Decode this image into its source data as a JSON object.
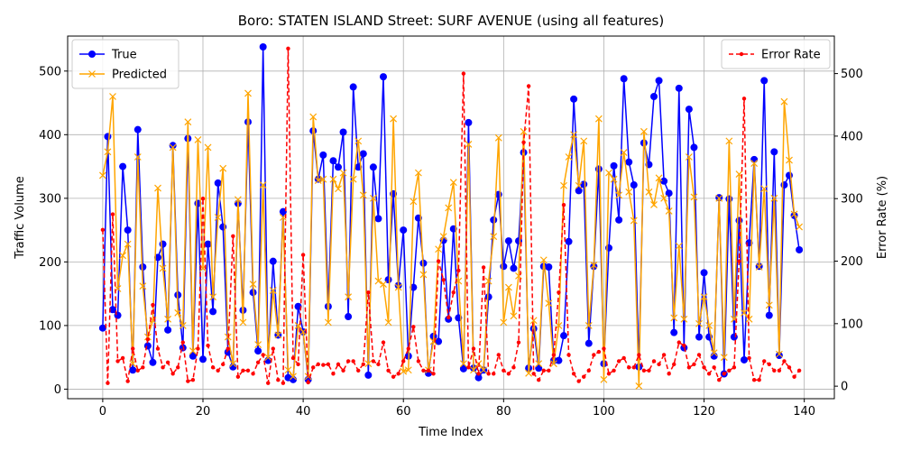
{
  "chart_data": {
    "type": "line",
    "title": "Boro: STATEN ISLAND Street: SURF AVENUE (using all features)",
    "xlabel": "Time Index",
    "ylabel_left": "Traffic Volume",
    "ylabel_right": "Error Rate (%)",
    "xlim": [
      -7,
      146
    ],
    "ylim_left": [
      -15,
      555
    ],
    "ylim_right": [
      -20,
      560
    ],
    "xticks": [
      0,
      20,
      40,
      60,
      80,
      100,
      120,
      140
    ],
    "yticks_left": [
      0,
      100,
      200,
      300,
      400,
      500
    ],
    "yticks_right": [
      0,
      100,
      200,
      300,
      400,
      500
    ],
    "grid": true,
    "x": [
      0,
      1,
      2,
      3,
      4,
      5,
      6,
      7,
      8,
      9,
      10,
      11,
      12,
      13,
      14,
      15,
      16,
      17,
      18,
      19,
      20,
      21,
      22,
      23,
      24,
      25,
      26,
      27,
      28,
      29,
      30,
      31,
      32,
      33,
      34,
      35,
      36,
      37,
      38,
      39,
      40,
      41,
      42,
      43,
      44,
      45,
      46,
      47,
      48,
      49,
      50,
      51,
      52,
      53,
      54,
      55,
      56,
      57,
      58,
      59,
      60,
      61,
      62,
      63,
      64,
      65,
      66,
      67,
      68,
      69,
      70,
      71,
      72,
      73,
      74,
      75,
      76,
      77,
      78,
      79,
      80,
      81,
      82,
      83,
      84,
      85,
      86,
      87,
      88,
      89,
      90,
      91,
      92,
      93,
      94,
      95,
      96,
      97,
      98,
      99,
      100,
      101,
      102,
      103,
      104,
      105,
      106,
      107,
      108,
      109,
      110,
      111,
      112,
      113,
      114,
      115,
      116,
      117,
      118,
      119,
      120,
      121,
      122,
      123,
      124,
      125,
      126,
      127,
      128,
      129,
      130,
      131,
      132,
      133,
      134,
      135,
      136,
      137,
      138,
      139
    ],
    "series": [
      {
        "name": "True",
        "axis": "left",
        "color": "#0000ff",
        "marker": "o",
        "values": [
          96,
          397,
          125,
          116,
          350,
          250,
          30,
          408,
          192,
          68,
          42,
          207,
          228,
          93,
          383,
          148,
          65,
          394,
          52,
          292,
          47,
          228,
          122,
          324,
          255,
          58,
          35,
          292,
          124,
          420,
          152,
          60,
          538,
          45,
          201,
          85,
          279,
          18,
          15,
          130,
          90,
          15,
          406,
          330,
          368,
          130,
          359,
          349,
          404,
          114,
          475,
          349,
          370,
          22,
          349,
          268,
          491,
          172,
          307,
          163,
          250,
          52,
          160,
          269,
          198,
          25,
          83,
          75,
          234,
          110,
          252,
          112,
          32,
          419,
          33,
          18,
          30,
          145,
          266,
          306,
          193,
          233,
          190,
          233,
          372,
          33,
          95,
          33,
          193,
          192,
          45,
          45,
          84,
          232,
          456,
          312,
          322,
          72,
          193,
          346,
          40,
          222,
          351,
          266,
          488,
          357,
          321,
          35,
          387,
          353,
          460,
          485,
          327,
          308,
          89,
          473,
          65,
          440,
          380,
          82,
          183,
          82,
          52,
          301,
          24,
          299,
          82,
          265,
          46,
          230,
          361,
          193,
          485,
          116,
          373,
          53,
          321,
          336,
          273,
          219
        ]
      },
      {
        "name": "Predicted",
        "axis": "left",
        "color": "#ffa500",
        "marker": "x",
        "values": [
          336,
          373,
          460,
          158,
          210,
          228,
          40,
          365,
          162,
          82,
          108,
          316,
          190,
          110,
          380,
          120,
          100,
          420,
          60,
          392,
          190,
          380,
          145,
          270,
          347,
          82,
          40,
          298,
          105,
          465,
          165,
          70,
          321,
          50,
          155,
          85,
          270,
          30,
          20,
          100,
          90,
          20,
          428,
          328,
          330,
          105,
          330,
          315,
          340,
          145,
          330,
          390,
          305,
          40,
          300,
          170,
          165,
          105,
          425,
          160,
          28,
          30,
          295,
          340,
          180,
          30,
          75,
          220,
          240,
          285,
          325,
          170,
          40,
          385,
          30,
          40,
          30,
          170,
          240,
          395,
          105,
          160,
          115,
          178,
          405,
          25,
          108,
          40,
          203,
          135,
          40,
          100,
          320,
          365,
          400,
          320,
          390,
          100,
          195,
          425,
          15,
          340,
          330,
          305,
          372,
          310,
          265,
          5,
          405,
          310,
          290,
          332,
          300,
          280,
          112,
          225,
          110,
          365,
          302,
          103,
          145,
          100,
          57,
          300,
          50,
          390,
          110,
          338,
          120,
          110,
          355,
          192,
          315,
          132,
          300,
          55,
          452,
          360,
          275,
          255
        ]
      },
      {
        "name": "Error Rate",
        "axis": "right",
        "color": "#ff0000",
        "marker": ".",
        "dashed": true,
        "values": [
          250,
          5,
          275,
          40,
          45,
          8,
          60,
          25,
          30,
          75,
          130,
          60,
          30,
          38,
          20,
          30,
          70,
          8,
          10,
          60,
          300,
          65,
          30,
          25,
          35,
          60,
          240,
          15,
          25,
          25,
          20,
          38,
          50,
          5,
          60,
          10,
          5,
          540,
          45,
          35,
          210,
          6,
          30,
          35,
          34,
          35,
          20,
          35,
          25,
          40,
          40,
          25,
          35,
          150,
          40,
          35,
          70,
          25,
          15,
          20,
          40,
          60,
          95,
          40,
          25,
          25,
          20,
          200,
          170,
          110,
          150,
          185,
          500,
          30,
          60,
          20,
          190,
          20,
          20,
          50,
          25,
          20,
          30,
          70,
          390,
          480,
          20,
          10,
          25,
          25,
          50,
          150,
          290,
          50,
          20,
          8,
          15,
          25,
          50,
          55,
          60,
          20,
          25,
          40,
          45,
          30,
          30,
          50,
          25,
          25,
          40,
          35,
          50,
          20,
          35,
          70,
          65,
          30,
          35,
          50,
          30,
          20,
          30,
          10,
          20,
          25,
          30,
          200,
          460,
          45,
          10,
          10,
          40,
          35,
          25,
          25,
          40,
          30,
          15,
          25
        ]
      }
    ],
    "legend_left": {
      "position": "upper left",
      "entries": [
        "True",
        "Predicted"
      ]
    },
    "legend_right": {
      "position": "upper right",
      "entries": [
        "Error Rate"
      ]
    }
  }
}
